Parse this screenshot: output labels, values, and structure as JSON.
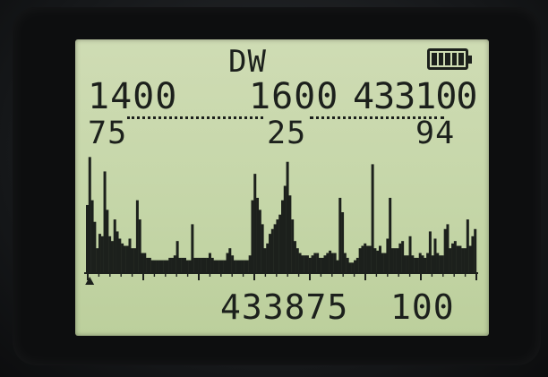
{
  "display": {
    "mode": "DW",
    "battery": {
      "icon": "battery-icon",
      "level": 1.0
    },
    "top_row": {
      "freq_a": "1400",
      "freq_b": "1600",
      "freq_c": "433100"
    },
    "level_row": {
      "a": "75",
      "b": "25",
      "c": "94"
    },
    "bottom_row": {
      "frequency": "433875",
      "step": "100"
    }
  },
  "chart_data": {
    "type": "bar",
    "title": "",
    "xlabel": "",
    "ylabel": "",
    "ylim": [
      0,
      100
    ],
    "marker_bin": 1,
    "values": [
      56,
      96,
      60,
      42,
      20,
      32,
      30,
      84,
      52,
      30,
      26,
      44,
      34,
      28,
      24,
      22,
      22,
      28,
      20,
      20,
      60,
      44,
      16,
      16,
      12,
      12,
      10,
      10,
      10,
      10,
      10,
      10,
      10,
      12,
      12,
      14,
      26,
      12,
      12,
      12,
      10,
      10,
      40,
      12,
      12,
      12,
      12,
      12,
      12,
      16,
      12,
      10,
      10,
      10,
      10,
      10,
      16,
      20,
      14,
      10,
      10,
      10,
      10,
      10,
      10,
      14,
      60,
      82,
      62,
      52,
      40,
      20,
      24,
      32,
      36,
      40,
      44,
      48,
      60,
      72,
      92,
      64,
      44,
      26,
      20,
      16,
      14,
      14,
      14,
      12,
      14,
      16,
      16,
      12,
      12,
      14,
      16,
      18,
      16,
      16,
      10,
      62,
      50,
      16,
      12,
      8,
      8,
      10,
      12,
      20,
      22,
      24,
      22,
      22,
      90,
      20,
      18,
      22,
      16,
      16,
      28,
      62,
      20,
      20,
      20,
      24,
      26,
      14,
      14,
      30,
      14,
      12,
      12,
      16,
      14,
      12,
      16,
      34,
      14,
      28,
      16,
      14,
      14,
      36,
      40,
      20,
      24,
      26,
      22,
      22,
      20,
      20,
      44,
      22,
      30,
      36
    ]
  }
}
